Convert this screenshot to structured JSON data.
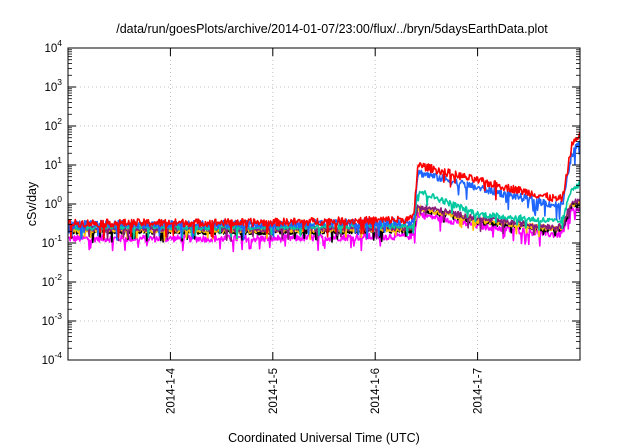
{
  "chart_data": {
    "type": "line",
    "title": "/data/run/goesPlots/archive/2014-01-07/23:00/flux/../bryn/5daysEarthData.plot",
    "xlabel": "Coordinated Universal Time (UTC)",
    "ylabel": "cSv/day",
    "y_scale": "log",
    "ylim": [
      0.0001,
      10000
    ],
    "y_ticks": [
      {
        "value": 0.0001,
        "base": "10",
        "exp": "-4"
      },
      {
        "value": 0.001,
        "base": "10",
        "exp": "-3"
      },
      {
        "value": 0.01,
        "base": "10",
        "exp": "-2"
      },
      {
        "value": 0.1,
        "base": "10",
        "exp": "-1"
      },
      {
        "value": 1,
        "base": "10",
        "exp": "0"
      },
      {
        "value": 10,
        "base": "10",
        "exp": "1"
      },
      {
        "value": 100,
        "base": "10",
        "exp": "2"
      },
      {
        "value": 1000,
        "base": "10",
        "exp": "3"
      },
      {
        "value": 10000,
        "base": "10",
        "exp": "4"
      }
    ],
    "xlim": [
      "2014-01-03T00:00",
      "2014-01-08T00:00"
    ],
    "x_ticks": [
      {
        "value": "2014-01-04T00:00",
        "label": "2014-1-4"
      },
      {
        "value": "2014-01-05T00:00",
        "label": "2014-1-5"
      },
      {
        "value": "2014-01-06T00:00",
        "label": "2014-1-6"
      },
      {
        "value": "2014-01-07T00:00",
        "label": "2014-1-7"
      }
    ],
    "grid": true,
    "legend": "none",
    "series": [
      {
        "color": "#ff00ff",
        "noise": 0.09,
        "points": [
          {
            "x": "2014-01-03T00:00",
            "y": 0.13
          },
          {
            "x": "2014-01-05T00:00",
            "y": 0.13
          },
          {
            "x": "2014-01-06T08:00",
            "y": 0.15
          },
          {
            "x": "2014-01-06T09:00",
            "y": 0.16
          },
          {
            "x": "2014-01-06T10:00",
            "y": 0.55
          },
          {
            "x": "2014-01-07T00:00",
            "y": 0.28
          },
          {
            "x": "2014-01-07T19:00",
            "y": 0.16
          },
          {
            "x": "2014-01-07T20:00",
            "y": 0.2
          },
          {
            "x": "2014-01-07T22:00",
            "y": 0.68
          },
          {
            "x": "2014-01-08T00:00",
            "y": 0.7
          }
        ]
      },
      {
        "color": "#000000",
        "noise": 0.07,
        "points": [
          {
            "x": "2014-01-03T00:00",
            "y": 0.2
          },
          {
            "x": "2014-01-05T00:00",
            "y": 0.19
          },
          {
            "x": "2014-01-06T08:00",
            "y": 0.21
          },
          {
            "x": "2014-01-06T09:00",
            "y": 0.22
          },
          {
            "x": "2014-01-06T10:00",
            "y": 0.75
          },
          {
            "x": "2014-01-07T00:00",
            "y": 0.35
          },
          {
            "x": "2014-01-07T19:00",
            "y": 0.21
          },
          {
            "x": "2014-01-07T20:00",
            "y": 0.25
          },
          {
            "x": "2014-01-07T22:00",
            "y": 0.85
          },
          {
            "x": "2014-01-08T00:00",
            "y": 0.9
          }
        ]
      },
      {
        "color": "#ffc000",
        "noise": 0.07,
        "points": [
          {
            "x": "2014-01-03T00:00",
            "y": 0.22
          },
          {
            "x": "2014-01-05T00:00",
            "y": 0.21
          },
          {
            "x": "2014-01-06T08:00",
            "y": 0.23
          },
          {
            "x": "2014-01-06T09:00",
            "y": 0.24
          },
          {
            "x": "2014-01-06T10:00",
            "y": 0.8
          },
          {
            "x": "2014-01-07T00:00",
            "y": 0.38
          },
          {
            "x": "2014-01-07T19:00",
            "y": 0.23
          },
          {
            "x": "2014-01-07T20:00",
            "y": 0.28
          },
          {
            "x": "2014-01-07T22:00",
            "y": 1.0
          },
          {
            "x": "2014-01-08T00:00",
            "y": 1.1
          }
        ]
      },
      {
        "color": "#8a1c7c",
        "noise": 0.08,
        "points": [
          {
            "x": "2014-01-03T00:00",
            "y": 0.24
          },
          {
            "x": "2014-01-05T00:00",
            "y": 0.23
          },
          {
            "x": "2014-01-06T08:00",
            "y": 0.25
          },
          {
            "x": "2014-01-06T09:00",
            "y": 0.26
          },
          {
            "x": "2014-01-06T10:00",
            "y": 0.9
          },
          {
            "x": "2014-01-07T00:00",
            "y": 0.42
          },
          {
            "x": "2014-01-07T19:00",
            "y": 0.25
          },
          {
            "x": "2014-01-07T20:00",
            "y": 0.3
          },
          {
            "x": "2014-01-07T22:00",
            "y": 1.1
          },
          {
            "x": "2014-01-08T00:00",
            "y": 1.2
          }
        ]
      },
      {
        "color": "#00c8a0",
        "noise": 0.08,
        "points": [
          {
            "x": "2014-01-03T00:00",
            "y": 0.26
          },
          {
            "x": "2014-01-05T00:00",
            "y": 0.26
          },
          {
            "x": "2014-01-06T08:00",
            "y": 0.28
          },
          {
            "x": "2014-01-06T09:00",
            "y": 0.3
          },
          {
            "x": "2014-01-06T10:00",
            "y": 2.2
          },
          {
            "x": "2014-01-07T00:00",
            "y": 0.55
          },
          {
            "x": "2014-01-07T19:00",
            "y": 0.35
          },
          {
            "x": "2014-01-07T20:00",
            "y": 0.4
          },
          {
            "x": "2014-01-07T22:00",
            "y": 2.5
          },
          {
            "x": "2014-01-08T00:00",
            "y": 3.3
          }
        ]
      },
      {
        "color": "#1e64ff",
        "noise": 0.1,
        "points": [
          {
            "x": "2014-01-03T00:00",
            "y": 0.3
          },
          {
            "x": "2014-01-05T00:00",
            "y": 0.3
          },
          {
            "x": "2014-01-06T08:00",
            "y": 0.35
          },
          {
            "x": "2014-01-06T09:00",
            "y": 0.4
          },
          {
            "x": "2014-01-06T10:00",
            "y": 6.5
          },
          {
            "x": "2014-01-07T00:00",
            "y": 2.6
          },
          {
            "x": "2014-01-07T19:00",
            "y": 0.9
          },
          {
            "x": "2014-01-07T20:00",
            "y": 1.0
          },
          {
            "x": "2014-01-07T22:00",
            "y": 18
          },
          {
            "x": "2014-01-08T00:00",
            "y": 40
          }
        ]
      },
      {
        "color": "#ff0000",
        "noise": 0.1,
        "points": [
          {
            "x": "2014-01-03T00:00",
            "y": 0.32
          },
          {
            "x": "2014-01-05T00:00",
            "y": 0.34
          },
          {
            "x": "2014-01-06T08:00",
            "y": 0.4
          },
          {
            "x": "2014-01-06T09:00",
            "y": 0.45
          },
          {
            "x": "2014-01-06T10:00",
            "y": 10
          },
          {
            "x": "2014-01-07T00:00",
            "y": 4.0
          },
          {
            "x": "2014-01-07T19:00",
            "y": 1.3
          },
          {
            "x": "2014-01-07T20:00",
            "y": 1.5
          },
          {
            "x": "2014-01-07T22:00",
            "y": 30
          },
          {
            "x": "2014-01-08T00:00",
            "y": 65
          }
        ]
      }
    ]
  }
}
